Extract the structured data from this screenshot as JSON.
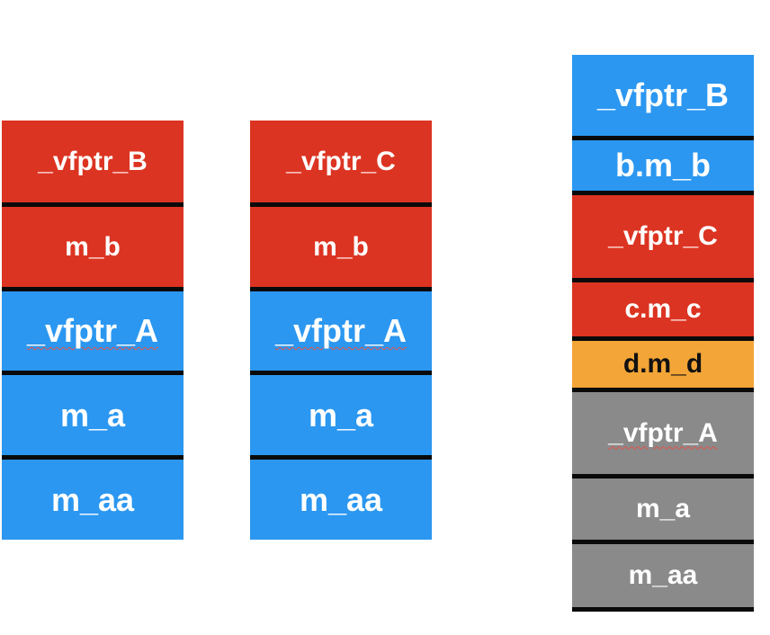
{
  "colors": {
    "red": "#dc3422",
    "blue": "#2b97f0",
    "orange": "#f3a537",
    "gray": "#8a8a8a",
    "separator": "#0a0a0a"
  },
  "layouts": [
    {
      "cells": [
        {
          "label": "_vfptr_B",
          "color": "red"
        },
        {
          "label": "m_b",
          "color": "red"
        },
        {
          "label": "_vfptr_A",
          "color": "blue"
        },
        {
          "label": "m_a",
          "color": "blue"
        },
        {
          "label": "m_aa",
          "color": "blue"
        }
      ]
    },
    {
      "cells": [
        {
          "label": "_vfptr_C",
          "color": "red"
        },
        {
          "label": "m_b",
          "color": "red"
        },
        {
          "label": "_vfptr_A",
          "color": "blue"
        },
        {
          "label": "m_a",
          "color": "blue"
        },
        {
          "label": "m_aa",
          "color": "blue"
        }
      ]
    },
    {
      "cells": [
        {
          "label": "_vfptr_B",
          "color": "blue"
        },
        {
          "label": "b.m_b",
          "color": "blue"
        },
        {
          "label": "_vfptr_C",
          "color": "red"
        },
        {
          "label": "c.m_c",
          "color": "red"
        },
        {
          "label": "d.m_d",
          "color": "orange"
        },
        {
          "label": "_vfptr_A",
          "color": "gray"
        },
        {
          "label": "m_a",
          "color": "gray"
        },
        {
          "label": "m_aa",
          "color": "gray"
        }
      ]
    }
  ]
}
